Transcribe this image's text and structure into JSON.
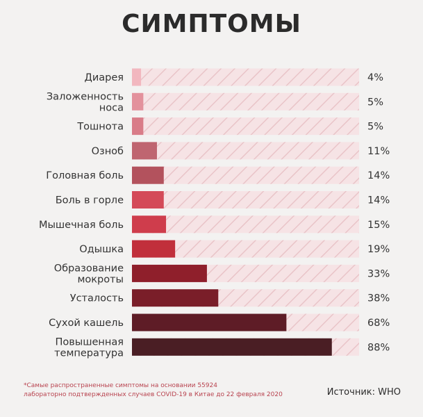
{
  "title": "СИМПТОМЫ",
  "chart_data": {
    "type": "bar",
    "orientation": "horizontal",
    "categories": [
      "Диарея",
      "Заложенность носа",
      "Тошнота",
      "Озноб",
      "Головная боль",
      "Боль в горле",
      "Мышечная боль",
      "Одышка",
      "Образование мокроты",
      "Усталость",
      "Сухой кашель",
      "Повышенная температура"
    ],
    "category_lines": [
      [
        "Диарея"
      ],
      [
        "Заложенность",
        "носа"
      ],
      [
        "Тошнота"
      ],
      [
        "Озноб"
      ],
      [
        "Головная боль"
      ],
      [
        "Боль в горле"
      ],
      [
        "Мышечная боль"
      ],
      [
        "Одышка"
      ],
      [
        "Образование",
        "мокроты"
      ],
      [
        "Усталость"
      ],
      [
        "Сухой кашель"
      ],
      [
        "Повышенная",
        "температура"
      ]
    ],
    "values": [
      4,
      5,
      5,
      11,
      14,
      14,
      15,
      19,
      33,
      38,
      68,
      88
    ],
    "value_labels": [
      "4%",
      "5%",
      "5%",
      "11%",
      "14%",
      "14%",
      "15%",
      "19%",
      "33%",
      "38%",
      "68%",
      "88%"
    ],
    "colors": [
      "#f2b7bf",
      "#e3919c",
      "#d97c88",
      "#bf6570",
      "#b3525d",
      "#d44a58",
      "#cf3d4c",
      "#c12f3b",
      "#8f1f2b",
      "#7a1e29",
      "#5e1c26",
      "#4a1e24"
    ],
    "track_color": "#f6e3e5",
    "xlim": [
      0,
      100
    ]
  },
  "footnote": {
    "line1": "*Самые распространенные симптомы на основании 55924",
    "line2": "лабораторно подтвержденных случаев COVID-19 в Китае до 22 февраля 2020"
  },
  "source": "Источник: WHO"
}
